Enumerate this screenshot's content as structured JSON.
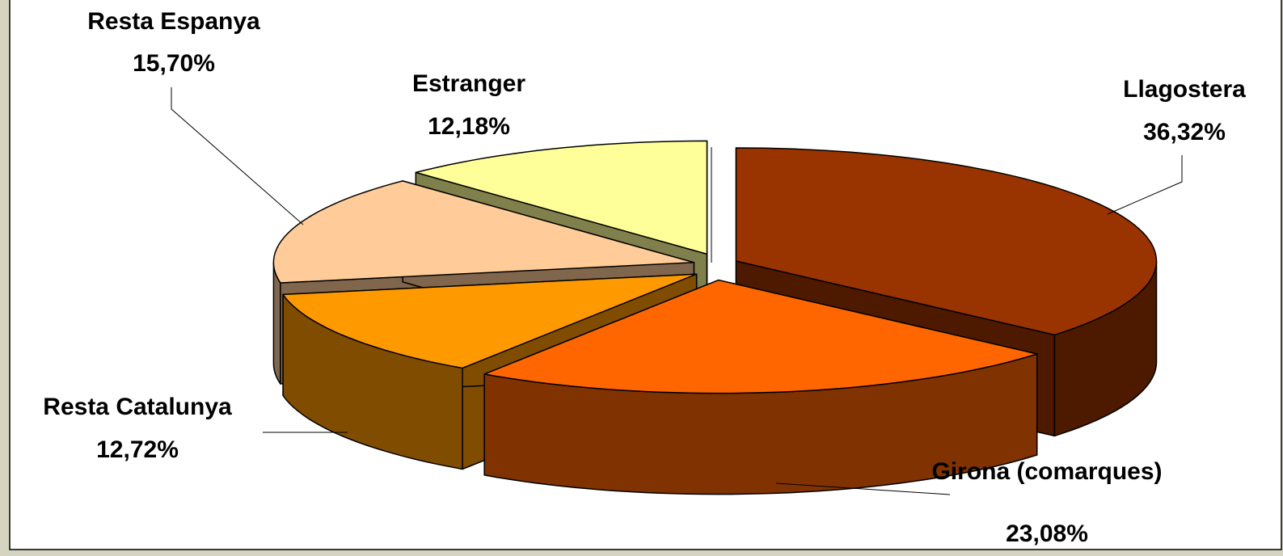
{
  "chart_data": {
    "type": "pie3d",
    "categories": [
      "Llagostera",
      "Girona (comarques)",
      "Resta Catalunya",
      "Resta Espanya",
      "Estranger"
    ],
    "values": [
      36.32,
      23.08,
      12.72,
      15.7,
      12.18
    ],
    "value_labels": [
      "36,32%",
      "23,08%",
      "12,72%",
      "15,70%",
      "12,18%"
    ],
    "colors": [
      "#993300",
      "#ff6600",
      "#ff9900",
      "#ffcc99",
      "#ffff99"
    ]
  }
}
